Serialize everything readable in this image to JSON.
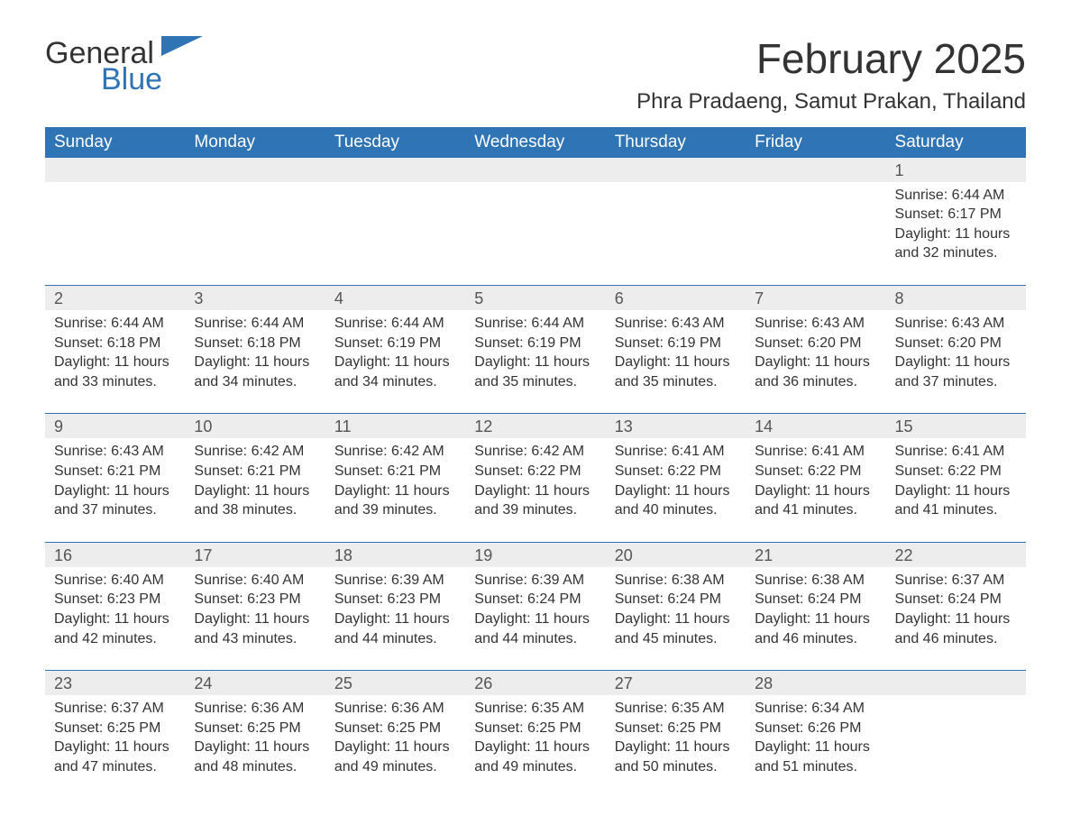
{
  "logo": {
    "word1": "General",
    "word2": "Blue"
  },
  "title": "February 2025",
  "location": "Phra Pradaeng, Samut Prakan, Thailand",
  "colors": {
    "header_bg": "#2f74b5",
    "header_fg": "#ffffff",
    "daynum_bg": "#ededed",
    "text": "#333333",
    "page_bg": "#ffffff",
    "logo_accent": "#2f74b5"
  },
  "typography": {
    "title_fontsize": 46,
    "location_fontsize": 24,
    "dow_fontsize": 19,
    "daynum_fontsize": 18,
    "detail_fontsize": 16,
    "font_family": "Segoe UI"
  },
  "days_of_week": [
    "Sunday",
    "Monday",
    "Tuesday",
    "Wednesday",
    "Thursday",
    "Friday",
    "Saturday"
  ],
  "weeks": [
    [
      null,
      null,
      null,
      null,
      null,
      null,
      {
        "n": "1",
        "sr": "Sunrise: 6:44 AM",
        "ss": "Sunset: 6:17 PM",
        "d1": "Daylight: 11 hours",
        "d2": "and 32 minutes."
      }
    ],
    [
      {
        "n": "2",
        "sr": "Sunrise: 6:44 AM",
        "ss": "Sunset: 6:18 PM",
        "d1": "Daylight: 11 hours",
        "d2": "and 33 minutes."
      },
      {
        "n": "3",
        "sr": "Sunrise: 6:44 AM",
        "ss": "Sunset: 6:18 PM",
        "d1": "Daylight: 11 hours",
        "d2": "and 34 minutes."
      },
      {
        "n": "4",
        "sr": "Sunrise: 6:44 AM",
        "ss": "Sunset: 6:19 PM",
        "d1": "Daylight: 11 hours",
        "d2": "and 34 minutes."
      },
      {
        "n": "5",
        "sr": "Sunrise: 6:44 AM",
        "ss": "Sunset: 6:19 PM",
        "d1": "Daylight: 11 hours",
        "d2": "and 35 minutes."
      },
      {
        "n": "6",
        "sr": "Sunrise: 6:43 AM",
        "ss": "Sunset: 6:19 PM",
        "d1": "Daylight: 11 hours",
        "d2": "and 35 minutes."
      },
      {
        "n": "7",
        "sr": "Sunrise: 6:43 AM",
        "ss": "Sunset: 6:20 PM",
        "d1": "Daylight: 11 hours",
        "d2": "and 36 minutes."
      },
      {
        "n": "8",
        "sr": "Sunrise: 6:43 AM",
        "ss": "Sunset: 6:20 PM",
        "d1": "Daylight: 11 hours",
        "d2": "and 37 minutes."
      }
    ],
    [
      {
        "n": "9",
        "sr": "Sunrise: 6:43 AM",
        "ss": "Sunset: 6:21 PM",
        "d1": "Daylight: 11 hours",
        "d2": "and 37 minutes."
      },
      {
        "n": "10",
        "sr": "Sunrise: 6:42 AM",
        "ss": "Sunset: 6:21 PM",
        "d1": "Daylight: 11 hours",
        "d2": "and 38 minutes."
      },
      {
        "n": "11",
        "sr": "Sunrise: 6:42 AM",
        "ss": "Sunset: 6:21 PM",
        "d1": "Daylight: 11 hours",
        "d2": "and 39 minutes."
      },
      {
        "n": "12",
        "sr": "Sunrise: 6:42 AM",
        "ss": "Sunset: 6:22 PM",
        "d1": "Daylight: 11 hours",
        "d2": "and 39 minutes."
      },
      {
        "n": "13",
        "sr": "Sunrise: 6:41 AM",
        "ss": "Sunset: 6:22 PM",
        "d1": "Daylight: 11 hours",
        "d2": "and 40 minutes."
      },
      {
        "n": "14",
        "sr": "Sunrise: 6:41 AM",
        "ss": "Sunset: 6:22 PM",
        "d1": "Daylight: 11 hours",
        "d2": "and 41 minutes."
      },
      {
        "n": "15",
        "sr": "Sunrise: 6:41 AM",
        "ss": "Sunset: 6:22 PM",
        "d1": "Daylight: 11 hours",
        "d2": "and 41 minutes."
      }
    ],
    [
      {
        "n": "16",
        "sr": "Sunrise: 6:40 AM",
        "ss": "Sunset: 6:23 PM",
        "d1": "Daylight: 11 hours",
        "d2": "and 42 minutes."
      },
      {
        "n": "17",
        "sr": "Sunrise: 6:40 AM",
        "ss": "Sunset: 6:23 PM",
        "d1": "Daylight: 11 hours",
        "d2": "and 43 minutes."
      },
      {
        "n": "18",
        "sr": "Sunrise: 6:39 AM",
        "ss": "Sunset: 6:23 PM",
        "d1": "Daylight: 11 hours",
        "d2": "and 44 minutes."
      },
      {
        "n": "19",
        "sr": "Sunrise: 6:39 AM",
        "ss": "Sunset: 6:24 PM",
        "d1": "Daylight: 11 hours",
        "d2": "and 44 minutes."
      },
      {
        "n": "20",
        "sr": "Sunrise: 6:38 AM",
        "ss": "Sunset: 6:24 PM",
        "d1": "Daylight: 11 hours",
        "d2": "and 45 minutes."
      },
      {
        "n": "21",
        "sr": "Sunrise: 6:38 AM",
        "ss": "Sunset: 6:24 PM",
        "d1": "Daylight: 11 hours",
        "d2": "and 46 minutes."
      },
      {
        "n": "22",
        "sr": "Sunrise: 6:37 AM",
        "ss": "Sunset: 6:24 PM",
        "d1": "Daylight: 11 hours",
        "d2": "and 46 minutes."
      }
    ],
    [
      {
        "n": "23",
        "sr": "Sunrise: 6:37 AM",
        "ss": "Sunset: 6:25 PM",
        "d1": "Daylight: 11 hours",
        "d2": "and 47 minutes."
      },
      {
        "n": "24",
        "sr": "Sunrise: 6:36 AM",
        "ss": "Sunset: 6:25 PM",
        "d1": "Daylight: 11 hours",
        "d2": "and 48 minutes."
      },
      {
        "n": "25",
        "sr": "Sunrise: 6:36 AM",
        "ss": "Sunset: 6:25 PM",
        "d1": "Daylight: 11 hours",
        "d2": "and 49 minutes."
      },
      {
        "n": "26",
        "sr": "Sunrise: 6:35 AM",
        "ss": "Sunset: 6:25 PM",
        "d1": "Daylight: 11 hours",
        "d2": "and 49 minutes."
      },
      {
        "n": "27",
        "sr": "Sunrise: 6:35 AM",
        "ss": "Sunset: 6:25 PM",
        "d1": "Daylight: 11 hours",
        "d2": "and 50 minutes."
      },
      {
        "n": "28",
        "sr": "Sunrise: 6:34 AM",
        "ss": "Sunset: 6:26 PM",
        "d1": "Daylight: 11 hours",
        "d2": "and 51 minutes."
      },
      null
    ]
  ]
}
